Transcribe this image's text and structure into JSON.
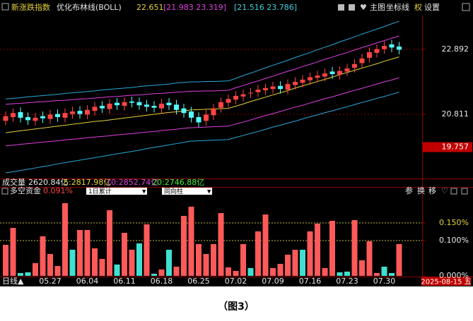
{
  "chart_data": [
    {
      "type": "candlestick",
      "title": "新涨跌指数",
      "indicator": "优化布林线(BOLL)",
      "indicator_values": [
        "22.651",
        "[21.983 23.319]",
        "[21.516 23.786]"
      ],
      "open": [
        20.6,
        20.72,
        20.88,
        20.72,
        20.6,
        20.75,
        20.66,
        20.82,
        20.7,
        20.82,
        20.92,
        20.8,
        20.92,
        21.08,
        20.98,
        21.18,
        21.08,
        21.22,
        21.2,
        21.12,
        21.08,
        21.0,
        21.18,
        21.12,
        21.0,
        20.9,
        20.72,
        20.6,
        20.78,
        21.02,
        21.18,
        21.28,
        21.38,
        21.48,
        21.52,
        21.58,
        21.62,
        21.72,
        21.6,
        21.75,
        21.82,
        21.9,
        21.98,
        22.02,
        22.18,
        22.08,
        22.18,
        22.3,
        22.45,
        22.62,
        22.78,
        22.9,
        23.05,
        22.98
      ],
      "high": [
        20.9,
        21.0,
        21.03,
        20.87,
        20.85,
        20.9,
        20.95,
        20.97,
        21.0,
        21.05,
        21.07,
        21.1,
        21.2,
        21.23,
        21.3,
        21.33,
        21.35,
        21.37,
        21.35,
        21.27,
        21.23,
        21.3,
        21.33,
        21.27,
        21.15,
        21.05,
        20.87,
        20.95,
        21.15,
        21.35,
        21.45,
        21.55,
        21.6,
        21.65,
        21.75,
        21.8,
        21.85,
        21.87,
        21.93,
        22.0,
        22.07,
        22.15,
        22.2,
        22.27,
        22.33,
        22.35,
        22.43,
        22.57,
        22.75,
        22.95,
        23.05,
        23.15,
        23.2,
        23.13
      ],
      "low": [
        20.45,
        20.57,
        20.55,
        20.47,
        20.45,
        20.53,
        20.51,
        20.57,
        20.55,
        20.67,
        20.67,
        20.65,
        20.77,
        20.85,
        20.83,
        20.95,
        20.93,
        21.03,
        20.95,
        20.9,
        20.87,
        20.85,
        20.95,
        20.8,
        20.7,
        20.55,
        20.4,
        20.45,
        20.63,
        20.87,
        21.03,
        21.13,
        21.23,
        21.33,
        21.37,
        21.43,
        21.47,
        21.47,
        21.45,
        21.6,
        21.67,
        21.75,
        21.83,
        21.87,
        21.95,
        21.93,
        22.03,
        22.15,
        22.3,
        22.47,
        22.63,
        22.75,
        22.8,
        22.73
      ],
      "close": [
        20.75,
        20.85,
        20.7,
        20.62,
        20.7,
        20.68,
        20.8,
        20.72,
        20.85,
        20.9,
        20.82,
        20.95,
        21.05,
        21.0,
        21.15,
        21.1,
        21.2,
        21.18,
        21.1,
        21.05,
        21.02,
        21.15,
        21.1,
        20.95,
        20.85,
        20.7,
        20.55,
        20.8,
        21.0,
        21.2,
        21.3,
        21.4,
        21.45,
        21.5,
        21.6,
        21.65,
        21.7,
        21.62,
        21.78,
        21.85,
        21.92,
        22.0,
        22.05,
        22.12,
        22.1,
        22.2,
        22.28,
        22.42,
        22.6,
        22.8,
        22.9,
        23.0,
        22.95,
        22.88
      ],
      "up_color": "#ff4444",
      "down_color": "#54fcfc",
      "lines": [
        {
          "color": "#e6d23a",
          "values": [
            20.22,
            20.25,
            20.28,
            20.31,
            20.34,
            20.37,
            20.4,
            20.43,
            20.46,
            20.49,
            20.52,
            20.55,
            20.58,
            20.6,
            20.63,
            20.66,
            20.69,
            20.72,
            20.75,
            20.78,
            20.81,
            20.84,
            20.87,
            20.89,
            20.92,
            20.95,
            20.96,
            20.97,
            20.98,
            20.99,
            21.0,
            21.07,
            21.14,
            21.22,
            21.29,
            21.36,
            21.43,
            21.5,
            21.57,
            21.65,
            21.72,
            21.79,
            21.86,
            21.93,
            22.0,
            22.08,
            22.15,
            22.22,
            22.29,
            22.36,
            22.43,
            22.51,
            22.58,
            22.65
          ]
        },
        {
          "color": "#e040e0",
          "values": [
            21.13,
            21.15,
            21.16,
            21.18,
            21.2,
            21.21,
            21.23,
            21.25,
            21.26,
            21.28,
            21.3,
            21.31,
            21.33,
            21.35,
            21.37,
            21.38,
            21.4,
            21.42,
            21.43,
            21.45,
            21.47,
            21.48,
            21.5,
            21.52,
            21.53,
            21.55,
            21.55,
            21.56,
            21.56,
            21.57,
            21.58,
            21.66,
            21.73,
            21.81,
            21.88,
            21.96,
            22.03,
            22.11,
            22.19,
            22.26,
            22.34,
            22.41,
            22.49,
            22.57,
            22.64,
            22.72,
            22.79,
            22.87,
            22.95,
            23.02,
            23.1,
            23.17,
            23.25,
            23.32
          ]
        },
        {
          "color": "#e040e0",
          "values": [
            19.8,
            19.82,
            19.85,
            19.87,
            19.89,
            19.92,
            19.94,
            19.96,
            19.99,
            20.01,
            20.03,
            20.06,
            20.08,
            20.1,
            20.12,
            20.15,
            20.17,
            20.19,
            20.22,
            20.24,
            20.26,
            20.29,
            20.31,
            20.33,
            20.36,
            20.38,
            20.39,
            20.4,
            20.41,
            20.42,
            20.43,
            20.5,
            20.56,
            20.63,
            20.7,
            20.77,
            20.83,
            20.9,
            20.97,
            21.04,
            21.1,
            21.17,
            21.24,
            21.31,
            21.37,
            21.44,
            21.51,
            21.58,
            21.64,
            21.71,
            21.78,
            21.85,
            21.91,
            21.98
          ]
        },
        {
          "color": "#2aa8d8",
          "values": [
            21.3,
            21.32,
            21.34,
            21.37,
            21.39,
            21.41,
            21.43,
            21.45,
            21.48,
            21.5,
            21.52,
            21.54,
            21.56,
            21.59,
            21.61,
            21.63,
            21.65,
            21.67,
            21.7,
            21.72,
            21.74,
            21.76,
            21.78,
            21.81,
            21.83,
            21.85,
            21.85,
            21.86,
            21.86,
            21.87,
            21.88,
            21.96,
            22.05,
            22.13,
            22.21,
            22.3,
            22.38,
            22.46,
            22.54,
            22.63,
            22.71,
            22.79,
            22.88,
            22.96,
            23.04,
            23.13,
            23.21,
            23.29,
            23.38,
            23.46,
            23.54,
            23.62,
            23.71,
            23.79
          ]
        },
        {
          "color": "#2aa8d8",
          "values": [
            18.93,
            18.97,
            19.01,
            19.05,
            19.09,
            19.13,
            19.17,
            19.22,
            19.26,
            19.3,
            19.34,
            19.38,
            19.42,
            19.46,
            19.5,
            19.54,
            19.58,
            19.62,
            19.66,
            19.71,
            19.75,
            19.79,
            19.83,
            19.87,
            19.91,
            19.95,
            19.96,
            19.97,
            19.98,
            19.99,
            20.0,
            20.07,
            20.13,
            20.2,
            20.26,
            20.33,
            20.4,
            20.46,
            20.53,
            20.59,
            20.66,
            20.73,
            20.79,
            20.86,
            20.92,
            20.99,
            21.05,
            21.12,
            21.19,
            21.25,
            21.32,
            21.38,
            21.45,
            21.52
          ]
        }
      ],
      "ylim": [
        18.82,
        24.36
      ],
      "yticks": [
        22.892,
        20.811
      ],
      "price_marker": 19.757,
      "grid": true
    },
    {
      "type": "bar",
      "title": "多空资金",
      "subtitle": "0.091%",
      "controls": [
        "1日累计",
        "同向柱"
      ],
      "categories": [
        null,
        null,
        null,
        null,
        null,
        null,
        "05.27",
        null,
        null,
        null,
        null,
        "06.04",
        null,
        null,
        null,
        null,
        "06.11",
        null,
        null,
        null,
        null,
        "06.18",
        null,
        null,
        null,
        null,
        "06.25",
        null,
        null,
        null,
        null,
        "07.02",
        null,
        null,
        null,
        null,
        "07.09",
        null,
        null,
        null,
        null,
        "07.16",
        null,
        null,
        null,
        null,
        "07.23",
        null,
        null,
        null,
        null,
        "07.30",
        null,
        null
      ],
      "values": [
        0.088,
        0.136,
        0.008,
        0.01,
        0.036,
        0.112,
        0.062,
        0.028,
        0.206,
        0.074,
        0.13,
        0.13,
        0.078,
        0.048,
        0.186,
        0.032,
        0.122,
        0.074,
        0.092,
        0.146,
        0.006,
        0.018,
        0.074,
        0.026,
        0.17,
        0.196,
        0.09,
        0.062,
        0.09,
        0.178,
        0.024,
        0.014,
        0.09,
        0.022,
        0.126,
        0.174,
        0.022,
        0.034,
        0.06,
        0.074,
        0.074,
        0.126,
        0.148,
        0.022,
        0.156,
        0.01,
        0.012,
        0.158,
        0.044,
        0.098,
        0.008,
        0.026,
        0.008,
        0.09
      ],
      "colors": [
        "#ff5a5a",
        "#ff5a5a",
        "#40e0d0",
        "#40e0d0",
        "#ff5a5a",
        "#ff5a5a",
        "#ff5a5a",
        "#ff5a5a",
        "#ff5a5a",
        "#40e0d0",
        "#ff5a5a",
        "#ff5a5a",
        "#ff5a5a",
        "#ff5a5a",
        "#ff5a5a",
        "#40e0d0",
        "#ff5a5a",
        "#ff5a5a",
        "#40e0d0",
        "#ff5a5a",
        "#40e0d0",
        "#ff5a5a",
        "#40e0d0",
        "#ff5a5a",
        "#ff5a5a",
        "#ff5a5a",
        "#ff5a5a",
        "#ff5a5a",
        "#ff5a5a",
        "#ff5a5a",
        "#ff5a5a",
        "#ff5a5a",
        "#ff5a5a",
        "#40e0d0",
        "#ff5a5a",
        "#ff5a5a",
        "#ff5a5a",
        "#ff5a5a",
        "#ff5a5a",
        "#ff5a5a",
        "#40e0d0",
        "#ff5a5a",
        "#ff5a5a",
        "#ff5a5a",
        "#ff5a5a",
        "#40e0d0",
        "#40e0d0",
        "#ff5a5a",
        "#ff5a5a",
        "#ff5a5a",
        "#ff5a5a",
        "#40e0d0",
        "#40e0d0",
        "#ff5a5a"
      ],
      "ylim": [
        0,
        0.25
      ],
      "yticks": [
        {
          "value": 0.15,
          "label": "0.150%"
        },
        {
          "value": 0.1,
          "label": "0.100%"
        },
        {
          "value": 0,
          "label": "0.000%"
        }
      ],
      "grid": true
    }
  ],
  "volume": {
    "label": "成交量",
    "total": "2620.84亿",
    "ma": [
      "5:2817.98亿",
      "10:2852.74亿",
      "20:2746.88亿"
    ]
  },
  "toolbar": {
    "main": [
      "主图",
      "坐标线",
      "权",
      "设置"
    ],
    "sub": [
      "参",
      "换",
      "移"
    ]
  },
  "period": "日线▲",
  "cursor_date": "2025-08-15 五",
  "caption": "（图3）"
}
